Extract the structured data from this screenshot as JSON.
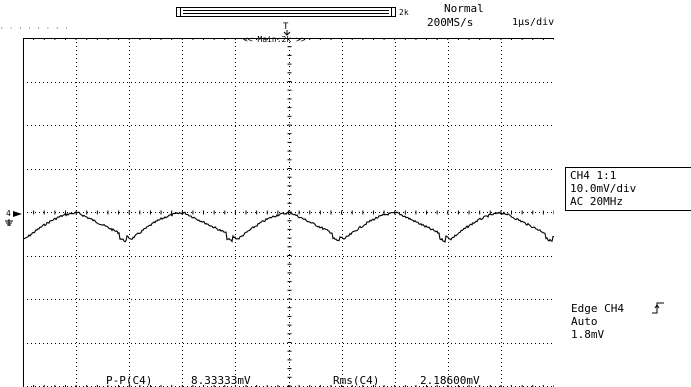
{
  "header": {
    "record_length": "2k",
    "trigger_mode": "Normal",
    "sample_rate": "200MS/s",
    "time_div": "1µs/div",
    "main_label": "<< Main:2k >>"
  },
  "trigger_marker": "T",
  "ground_marker": "4",
  "channel_info": {
    "line1": "CH4  1:1",
    "line2": "10.0mV/div",
    "line3": "AC   20MHz"
  },
  "trigger_info": {
    "line1": "Edge CH4",
    "line2": "Auto",
    "line3": "1.8mV"
  },
  "measurements": {
    "pp_label": "P-P(C4)",
    "pp_value": "8.33333mV",
    "rms_label": "Rms(C4)",
    "rms_value": "2.18600mV"
  },
  "colors": {
    "trace": "#000000",
    "grid": "#000000",
    "background": "#ffffff"
  }
}
